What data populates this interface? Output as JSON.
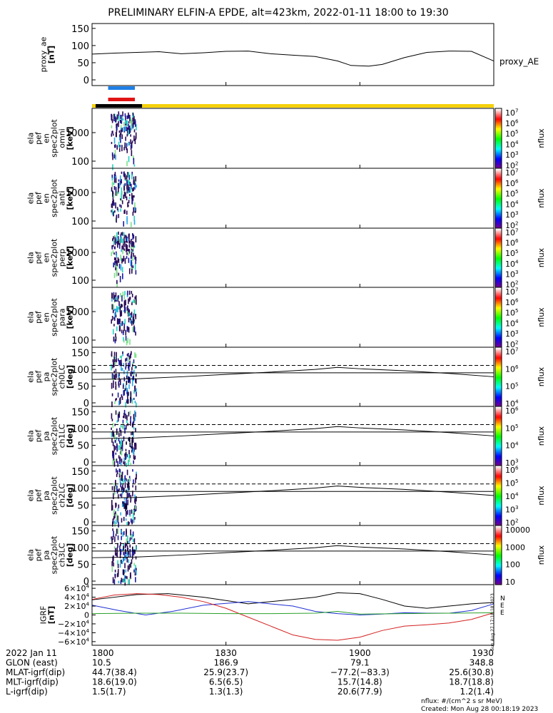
{
  "title": "PRELIMINARY ELFIN-A EPDE, alt=423km, 2022-01-11 18:00 to 19:30",
  "colors": {
    "bar_blue": "#1e7fe6",
    "bar_red": "#e01414",
    "day_yellow": "#f5d10a",
    "night_black": "#000000",
    "by_blue": "#1f2fd1",
    "bz_red": "#d42020",
    "bx_green": "#2aa02a",
    "btot_black": "#000000"
  },
  "time_axis": {
    "start_min": 0,
    "end_min": 90,
    "ticks": [
      {
        "min": 0,
        "label": "1800"
      },
      {
        "min": 30,
        "label": "1830"
      },
      {
        "min": 60,
        "label": "1900"
      },
      {
        "min": 90,
        "label": "1930"
      }
    ]
  },
  "panels": [
    {
      "key": "ae",
      "ylabel": [
        "proxy_ae",
        "[nT]"
      ],
      "right_label": "proxy_AE",
      "yticks": [
        "150",
        "100",
        "50",
        "0"
      ]
    },
    {
      "key": "omni",
      "ylabel": [
        "ela",
        "pef",
        "en",
        "spec2plot",
        "omni",
        "[keV]"
      ],
      "yticks": [
        "1000",
        "100"
      ],
      "cbar_label": "nflux",
      "cbar_ticks": [
        "10^7",
        "10^6",
        "10^5",
        "10^4",
        "10^3",
        "10^2"
      ]
    },
    {
      "key": "anti",
      "ylabel": [
        "ela",
        "pef",
        "en",
        "spec2plot",
        "anti",
        "[keV]"
      ],
      "yticks": [
        "1000",
        "100"
      ],
      "cbar_label": "nflux",
      "cbar_ticks": [
        "10^7",
        "10^6",
        "10^5",
        "10^4",
        "10^3",
        "10^2"
      ]
    },
    {
      "key": "perp",
      "ylabel": [
        "ela",
        "pef",
        "en",
        "spec2plot",
        "perp",
        "[keV]"
      ],
      "yticks": [
        "1000",
        "100"
      ],
      "cbar_label": "nflux",
      "cbar_ticks": [
        "10^7",
        "10^6",
        "10^5",
        "10^4",
        "10^3",
        "10^2"
      ]
    },
    {
      "key": "para",
      "ylabel": [
        "ela",
        "pef",
        "en",
        "spec2plot",
        "para",
        "[keV]"
      ],
      "yticks": [
        "1000",
        "100"
      ],
      "cbar_label": "nflux",
      "cbar_ticks": [
        "10^7",
        "10^6",
        "10^5",
        "10^4",
        "10^3",
        "10^2"
      ]
    },
    {
      "key": "ch0",
      "ylabel": [
        "ela",
        "pef",
        "pa",
        "spec2plot",
        "ch0LC",
        "[deg]"
      ],
      "yticks": [
        "150",
        "100",
        "50",
        "0"
      ],
      "cbar_label": "nflux",
      "cbar_ticks": [
        "10^7",
        "10^6",
        "10^5",
        "10^4"
      ]
    },
    {
      "key": "ch1",
      "ylabel": [
        "ela",
        "pef",
        "pa",
        "spec2plot",
        "ch1LC",
        "[deg]"
      ],
      "yticks": [
        "150",
        "100",
        "50",
        "0"
      ],
      "cbar_label": "nflux",
      "cbar_ticks": [
        "10^6",
        "10^5",
        "10^4",
        "10^3"
      ]
    },
    {
      "key": "ch2",
      "ylabel": [
        "ela",
        "pef",
        "pa",
        "spec2plot",
        "ch2LC",
        "[deg]"
      ],
      "yticks": [
        "150",
        "100",
        "50",
        "0"
      ],
      "cbar_label": "nflux",
      "cbar_ticks": [
        "10^6",
        "10^5",
        "10^4",
        "10^3",
        "10^2"
      ]
    },
    {
      "key": "ch3",
      "ylabel": [
        "ela",
        "pef",
        "pa",
        "spec2plot",
        "ch3LC",
        "[deg]"
      ],
      "yticks": [
        "150",
        "100",
        "50",
        "0"
      ],
      "cbar_label": "nflux",
      "cbar_ticks": [
        "10000",
        "1000",
        "100",
        "10"
      ]
    },
    {
      "key": "igrf",
      "ylabel": [
        "IGRF",
        "[nT]"
      ],
      "yticks": [
        "6×10^4",
        "4×10^4",
        "2×10^4",
        "0",
        "−2×10^4",
        "−4×10^4",
        "−6×10^4"
      ],
      "side_note": "Sun Aug 27 17:18:18 2023"
    }
  ],
  "chart_data": [
    {
      "type": "line",
      "panel": "ae",
      "name": "proxy_AE",
      "x": [
        0,
        5,
        10,
        15,
        20,
        25,
        30,
        35,
        40,
        45,
        50,
        55,
        58,
        62,
        65,
        70,
        75,
        80,
        85,
        90
      ],
      "y": [
        75,
        78,
        80,
        82,
        76,
        79,
        83,
        84,
        76,
        72,
        68,
        55,
        42,
        40,
        45,
        65,
        80,
        84,
        83,
        55
      ],
      "ylim": [
        0,
        160
      ]
    },
    {
      "type": "heatmap",
      "panels": [
        "omni",
        "anti",
        "perp",
        "para",
        "ch0",
        "ch1",
        "ch2",
        "ch3"
      ],
      "x_active_range": [
        4,
        10
      ]
    },
    {
      "type": "line",
      "panel": "pa",
      "series": [
        {
          "name": "dashed",
          "style": "dashed",
          "x": [
            0,
            90
          ],
          "y": [
            112,
            112
          ]
        },
        {
          "name": "solid_flat",
          "style": "solid",
          "x": [
            0,
            90
          ],
          "y": [
            90,
            90
          ]
        },
        {
          "name": "solid_curve",
          "style": "solid",
          "x": [
            0,
            10,
            20,
            30,
            40,
            50,
            55,
            60,
            70,
            80,
            90
          ],
          "y": [
            70,
            72,
            78,
            85,
            92,
            100,
            106,
            102,
            96,
            88,
            78
          ]
        }
      ],
      "ylim": [
        0,
        160
      ]
    },
    {
      "type": "line",
      "panel": "igrf",
      "series": [
        {
          "name": "btot",
          "color": "#000000",
          "x": [
            0,
            10,
            17,
            25,
            35,
            45,
            50,
            55,
            60,
            65,
            70,
            75,
            80,
            85,
            90
          ],
          "y": [
            34000,
            46000,
            48000,
            40000,
            25000,
            35000,
            40000,
            50000,
            48000,
            35000,
            20000,
            15000,
            20000,
            25000,
            28000
          ]
        },
        {
          "name": "by",
          "color": "#1f2fd1",
          "x": [
            0,
            6,
            12,
            18,
            25,
            35,
            45,
            50,
            55,
            60,
            65,
            70,
            75,
            80,
            85,
            90
          ],
          "y": [
            22000,
            10000,
            0,
            8000,
            22000,
            30000,
            20000,
            8000,
            3000,
            0,
            2000,
            5000,
            4000,
            4000,
            10000,
            25000
          ]
        },
        {
          "name": "bz",
          "color": "#d42020",
          "x": [
            0,
            5,
            10,
            15,
            20,
            25,
            30,
            35,
            40,
            45,
            50,
            55,
            60,
            65,
            70,
            75,
            80,
            85,
            90
          ],
          "y": [
            35000,
            45000,
            48000,
            46000,
            40000,
            30000,
            15000,
            -5000,
            -25000,
            -45000,
            -55000,
            -57000,
            -50000,
            -35000,
            -25000,
            -22000,
            -18000,
            -10000,
            5000
          ]
        },
        {
          "name": "bx",
          "color": "#2aa02a",
          "x": [
            0,
            10,
            20,
            30,
            40,
            50,
            55,
            60,
            70,
            80,
            90
          ],
          "y": [
            3000,
            4000,
            4000,
            3000,
            3000,
            4000,
            8000,
            2000,
            3000,
            4000,
            5000
          ]
        }
      ],
      "ylim": [
        -65000,
        65000
      ]
    }
  ],
  "footer": {
    "rows": [
      {
        "label": "2022 Jan 11",
        "values": [
          "1800",
          "1830",
          "1900",
          "1930"
        ]
      },
      {
        "label": "GLON (east)",
        "values": [
          "10.5",
          "186.9",
          "79.1",
          "348.8"
        ]
      },
      {
        "label": "MLAT-igrf(dip)",
        "values": [
          "44.7(38.4)",
          "25.9(23.7)",
          "−77.2(−83.3)",
          "25.6(30.8)"
        ]
      },
      {
        "label": "MLT-igrf(dip)",
        "values": [
          "18.6(19.0)",
          "6.5(6.5)",
          "15.7(14.8)",
          "18.7(18.8)"
        ]
      },
      {
        "label": "L-igrf(dip)",
        "values": [
          "1.5(1.7)",
          "1.3(1.3)",
          "20.6(77.9)",
          "1.2(1.4)"
        ]
      }
    ],
    "note": "nflux: #/(cm^2 s sr MeV)",
    "created": "Created: Mon Aug 28 00:18:19 2023"
  }
}
